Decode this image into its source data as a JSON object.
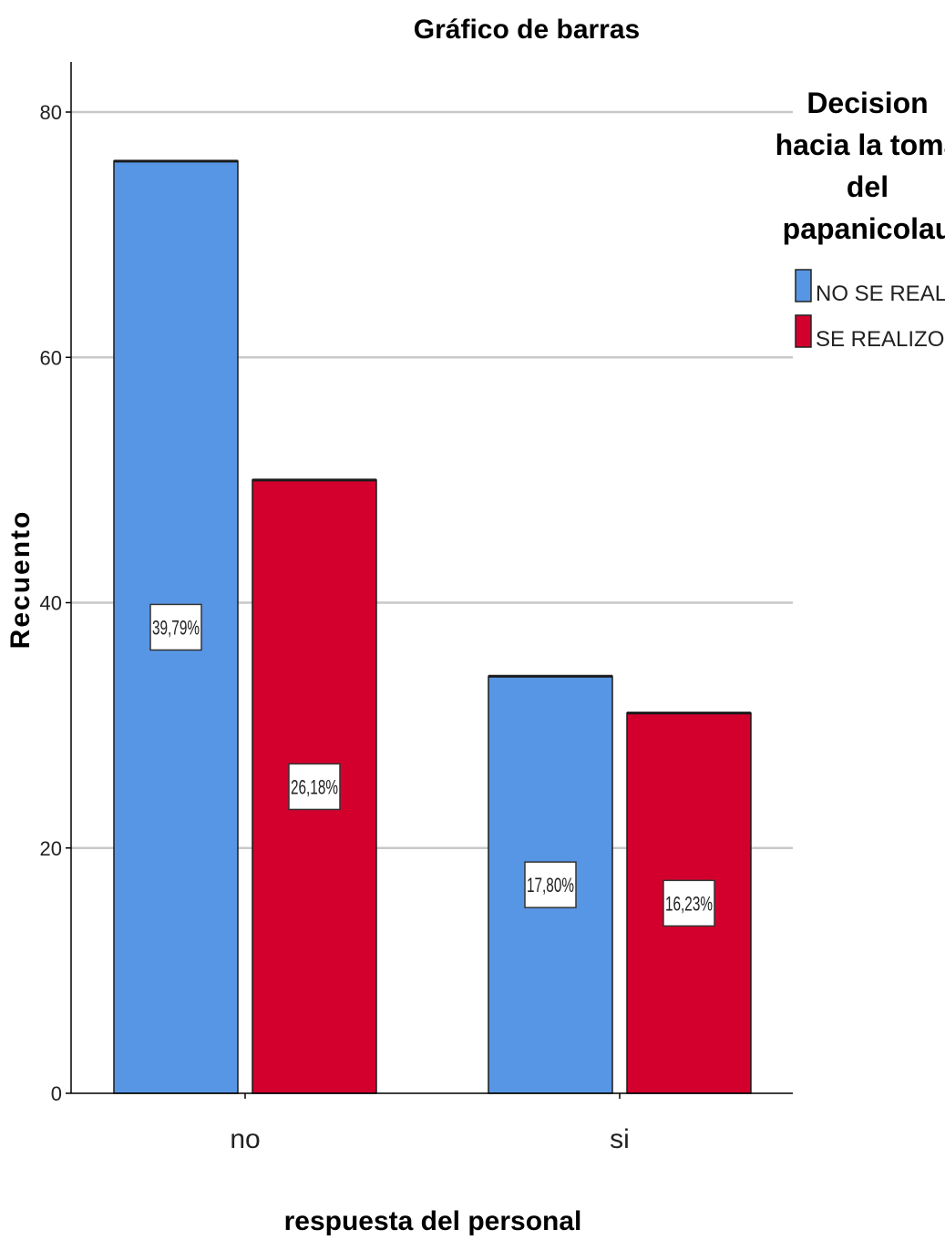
{
  "chart_data": {
    "type": "bar",
    "title": "Gráfico de barras",
    "xlabel": "respuesta del personal",
    "ylabel": "Recuento",
    "categories": [
      "no",
      "si"
    ],
    "ylim": [
      0,
      80
    ],
    "yticks": [
      0,
      20,
      40,
      60,
      80
    ],
    "grid": true,
    "legend": {
      "title_lines": [
        "Decision",
        "hacia la toma",
        "del",
        "papanicolau"
      ],
      "placement": "right"
    },
    "series": [
      {
        "name": "NO SE REALIZO",
        "color": "#5796E4",
        "values": [
          76,
          34
        ],
        "labels": [
          "39,79%",
          "17,80%"
        ]
      },
      {
        "name": "SE REALIZO",
        "color": "#D3002D",
        "values": [
          50,
          31
        ],
        "labels": [
          "26,18%",
          "16,23%"
        ]
      }
    ]
  }
}
